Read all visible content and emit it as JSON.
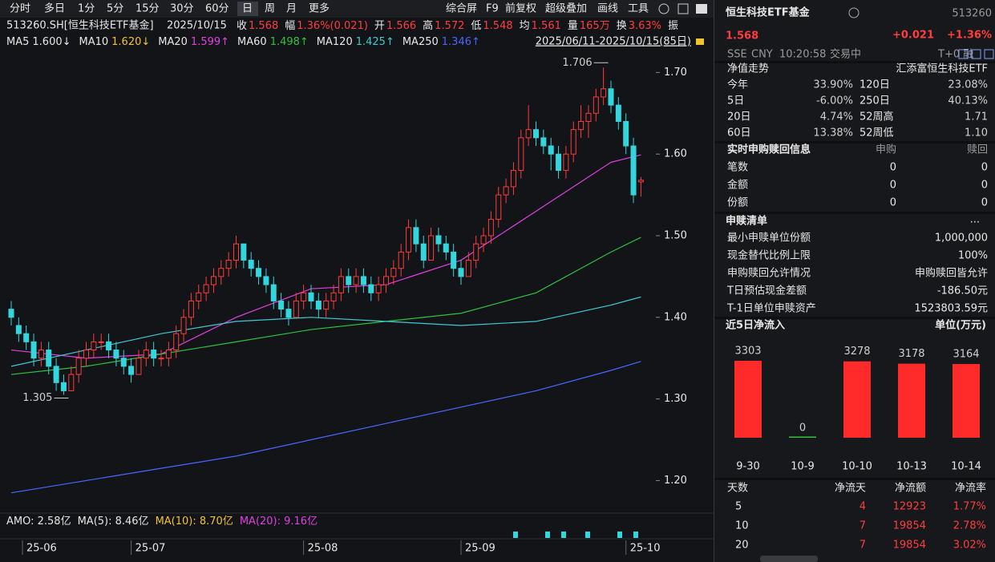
{
  "toolbar": {
    "tabs": [
      "分时",
      "多日",
      "1分",
      "5分",
      "15分",
      "30分",
      "60分",
      "日",
      "周",
      "月",
      "更多"
    ],
    "active": 7,
    "tools": [
      "综合屏",
      "F9",
      "前复权",
      "超级叠加",
      "画线",
      "工具"
    ]
  },
  "quote_bar": {
    "code": "513260.SH[恒生科技ETF基金]",
    "date": "2025/10/15",
    "items": [
      {
        "label": "收",
        "value": "1.568"
      },
      {
        "label": "幅",
        "value": "1.36%(0.021)"
      },
      {
        "label": "开",
        "value": "1.566"
      },
      {
        "label": "高",
        "value": "1.572"
      },
      {
        "label": "低",
        "value": "1.548"
      },
      {
        "label": "均",
        "value": "1.561"
      },
      {
        "label": "量",
        "value": "165万"
      },
      {
        "label": "换",
        "value": "3.63%"
      },
      {
        "label": "振"
      }
    ]
  },
  "period": "2025/06/11-2025/10/15(85日)",
  "chart_data": [
    {
      "type": "candlestick",
      "up_color": "#ff3b3b",
      "down_color": "#33d6dc",
      "ylim": [
        1.168,
        1.722
      ],
      "yticks": [
        {
          "value": 1.2,
          "label": "1.20"
        },
        {
          "value": 1.3,
          "label": "1.30"
        },
        {
          "value": 1.4,
          "label": "1.40"
        },
        {
          "value": 1.5,
          "label": "1.50"
        },
        {
          "value": 1.6,
          "label": "1.60"
        },
        {
          "value": 1.7,
          "label": "1.70"
        }
      ],
      "xticks": [
        {
          "value": 1.5,
          "label": "25-06"
        },
        {
          "value": 16,
          "label": "25-07"
        },
        {
          "value": 39,
          "label": "25-08"
        },
        {
          "value": 60,
          "label": "25-09"
        },
        {
          "value": 82,
          "label": "25-10"
        }
      ],
      "ohlc": [
        [
          1.41,
          1.42,
          1.39,
          1.4
        ],
        [
          1.39,
          1.4,
          1.37,
          1.38
        ],
        [
          1.38,
          1.39,
          1.36,
          1.37
        ],
        [
          1.37,
          1.38,
          1.34,
          1.35
        ],
        [
          1.35,
          1.37,
          1.34,
          1.36
        ],
        [
          1.36,
          1.37,
          1.33,
          1.34
        ],
        [
          1.34,
          1.35,
          1.31,
          1.32
        ],
        [
          1.32,
          1.33,
          1.305,
          1.31
        ],
        [
          1.31,
          1.34,
          1.31,
          1.33
        ],
        [
          1.33,
          1.36,
          1.32,
          1.35
        ],
        [
          1.35,
          1.37,
          1.34,
          1.36
        ],
        [
          1.36,
          1.38,
          1.35,
          1.37
        ],
        [
          1.37,
          1.38,
          1.36,
          1.37
        ],
        [
          1.37,
          1.38,
          1.35,
          1.36
        ],
        [
          1.36,
          1.37,
          1.34,
          1.35
        ],
        [
          1.35,
          1.36,
          1.33,
          1.34
        ],
        [
          1.34,
          1.35,
          1.32,
          1.33
        ],
        [
          1.33,
          1.36,
          1.33,
          1.35
        ],
        [
          1.35,
          1.37,
          1.34,
          1.36
        ],
        [
          1.36,
          1.37,
          1.34,
          1.35
        ],
        [
          1.35,
          1.36,
          1.34,
          1.35
        ],
        [
          1.35,
          1.37,
          1.34,
          1.36
        ],
        [
          1.36,
          1.39,
          1.35,
          1.38
        ],
        [
          1.38,
          1.41,
          1.37,
          1.4
        ],
        [
          1.4,
          1.43,
          1.39,
          1.42
        ],
        [
          1.42,
          1.44,
          1.41,
          1.43
        ],
        [
          1.43,
          1.45,
          1.42,
          1.44
        ],
        [
          1.44,
          1.46,
          1.43,
          1.45
        ],
        [
          1.45,
          1.47,
          1.44,
          1.46
        ],
        [
          1.46,
          1.48,
          1.45,
          1.47
        ],
        [
          1.47,
          1.5,
          1.46,
          1.49
        ],
        [
          1.49,
          1.49,
          1.46,
          1.47
        ],
        [
          1.47,
          1.48,
          1.45,
          1.46
        ],
        [
          1.46,
          1.47,
          1.44,
          1.45
        ],
        [
          1.45,
          1.46,
          1.43,
          1.44
        ],
        [
          1.44,
          1.45,
          1.41,
          1.42
        ],
        [
          1.42,
          1.43,
          1.4,
          1.41
        ],
        [
          1.41,
          1.42,
          1.39,
          1.4
        ],
        [
          1.4,
          1.43,
          1.4,
          1.42
        ],
        [
          1.42,
          1.44,
          1.41,
          1.43
        ],
        [
          1.43,
          1.44,
          1.41,
          1.42
        ],
        [
          1.42,
          1.43,
          1.4,
          1.41
        ],
        [
          1.41,
          1.43,
          1.4,
          1.42
        ],
        [
          1.42,
          1.44,
          1.41,
          1.43
        ],
        [
          1.43,
          1.46,
          1.42,
          1.45
        ],
        [
          1.45,
          1.46,
          1.43,
          1.44
        ],
        [
          1.44,
          1.46,
          1.43,
          1.45
        ],
        [
          1.45,
          1.46,
          1.43,
          1.44
        ],
        [
          1.44,
          1.45,
          1.42,
          1.43
        ],
        [
          1.43,
          1.45,
          1.42,
          1.44
        ],
        [
          1.44,
          1.46,
          1.43,
          1.45
        ],
        [
          1.45,
          1.47,
          1.44,
          1.46
        ],
        [
          1.46,
          1.49,
          1.45,
          1.48
        ],
        [
          1.48,
          1.52,
          1.47,
          1.51
        ],
        [
          1.51,
          1.52,
          1.48,
          1.49
        ],
        [
          1.49,
          1.5,
          1.46,
          1.47
        ],
        [
          1.47,
          1.51,
          1.47,
          1.5
        ],
        [
          1.5,
          1.51,
          1.48,
          1.49
        ],
        [
          1.49,
          1.5,
          1.47,
          1.48
        ],
        [
          1.48,
          1.49,
          1.45,
          1.46
        ],
        [
          1.46,
          1.47,
          1.44,
          1.45
        ],
        [
          1.45,
          1.48,
          1.45,
          1.47
        ],
        [
          1.47,
          1.5,
          1.46,
          1.49
        ],
        [
          1.49,
          1.51,
          1.48,
          1.5
        ],
        [
          1.5,
          1.53,
          1.49,
          1.52
        ],
        [
          1.52,
          1.56,
          1.51,
          1.55
        ],
        [
          1.55,
          1.57,
          1.54,
          1.56
        ],
        [
          1.56,
          1.59,
          1.55,
          1.58
        ],
        [
          1.58,
          1.63,
          1.57,
          1.62
        ],
        [
          1.62,
          1.66,
          1.61,
          1.63
        ],
        [
          1.63,
          1.64,
          1.61,
          1.62
        ],
        [
          1.62,
          1.63,
          1.6,
          1.61
        ],
        [
          1.61,
          1.62,
          1.58,
          1.6
        ],
        [
          1.6,
          1.61,
          1.57,
          1.58
        ],
        [
          1.58,
          1.61,
          1.57,
          1.6
        ],
        [
          1.6,
          1.64,
          1.59,
          1.63
        ],
        [
          1.63,
          1.66,
          1.62,
          1.64
        ],
        [
          1.64,
          1.66,
          1.62,
          1.65
        ],
        [
          1.65,
          1.68,
          1.64,
          1.67
        ],
        [
          1.67,
          1.706,
          1.66,
          1.68
        ],
        [
          1.68,
          1.69,
          1.65,
          1.66
        ],
        [
          1.66,
          1.67,
          1.63,
          1.64
        ],
        [
          1.64,
          1.65,
          1.6,
          1.61
        ],
        [
          1.61,
          1.62,
          1.54,
          1.55
        ],
        [
          1.566,
          1.572,
          1.548,
          1.568
        ]
      ],
      "series": [
        {
          "name": "MA5",
          "label": "1.600↓",
          "color": "#e6e6e6"
        },
        {
          "name": "MA10",
          "label": "1.620↓",
          "color": "#f2c230"
        },
        {
          "name": "MA20",
          "label": "1.599↑",
          "color": "#e040e0",
          "x": [
            0,
            10,
            20,
            30,
            40,
            50,
            60,
            70,
            80,
            84
          ],
          "values": [
            1.36,
            1.35,
            1.355,
            1.4,
            1.435,
            1.44,
            1.47,
            1.53,
            1.59,
            1.599
          ]
        },
        {
          "name": "MA60",
          "label": "1.498↑",
          "color": "#30c040",
          "x": [
            0,
            10,
            20,
            30,
            40,
            50,
            60,
            70,
            80,
            84
          ],
          "values": [
            1.33,
            1.34,
            1.355,
            1.37,
            1.385,
            1.395,
            1.405,
            1.43,
            1.48,
            1.498
          ]
        },
        {
          "name": "MA120",
          "label": "1.425↑",
          "color": "#40c8d0",
          "x": [
            0,
            10,
            20,
            30,
            40,
            50,
            60,
            70,
            80,
            84
          ],
          "values": [
            1.34,
            1.36,
            1.38,
            1.395,
            1.4,
            1.395,
            1.39,
            1.395,
            1.415,
            1.425
          ]
        },
        {
          "name": "MA250",
          "label": "1.346↑",
          "color": "#4a66ff",
          "x": [
            0,
            10,
            20,
            30,
            40,
            50,
            60,
            70,
            80,
            84
          ],
          "values": [
            1.185,
            1.2,
            1.215,
            1.23,
            1.25,
            1.27,
            1.29,
            1.31,
            1.335,
            1.346
          ]
        }
      ],
      "annotations": [
        {
          "text": "1.706",
          "x": 79,
          "y": 1.706,
          "color": "#ff3d3d"
        },
        {
          "text": "1.305",
          "x": 7,
          "y": 1.305,
          "color": "#30c040"
        }
      ]
    },
    {
      "type": "bar",
      "title": "近5日净流入",
      "unit": "单位(万元)",
      "categories": [
        "9-30",
        "10-9",
        "10-10",
        "10-13",
        "10-14"
      ],
      "values": [
        3303,
        0,
        3278,
        3178,
        3164
      ],
      "colors": [
        "#ff2a2a",
        "#30c040",
        "#ff2a2a",
        "#ff2a2a",
        "#ff2a2a"
      ],
      "ylim": [
        0,
        3303
      ]
    }
  ],
  "amo": [
    {
      "text": "AMO: 2.58亿",
      "color": "#e6e6e6"
    },
    {
      "text": "MA(5): 8.46亿",
      "color": "#e6e6e6"
    },
    {
      "text": "MA(10): 8.70亿",
      "color": "#f2c230"
    },
    {
      "text": "MA(20): 9.16亿",
      "color": "#e040e0"
    }
  ],
  "panel": {
    "name": "恒生科技ETF基金",
    "code": "513260",
    "price": "1.568",
    "change": "+0.021",
    "change_pct": "+1.36%",
    "meta": [
      "SSE",
      "CNY",
      "10:20:58",
      "交易中"
    ],
    "t0": "T+0 融",
    "nav": {
      "title": "净值走势",
      "fund": "汇添富恒生科技ETF",
      "rows": [
        {
          "l1": "今年",
          "v1": "33.90%",
          "c1": "#ff3d3d",
          "l2": "120日",
          "v2": "23.08%",
          "c2": "#ff3d3d"
        },
        {
          "l1": "5日",
          "v1": "-6.00%",
          "c1": "#30c040",
          "l2": "250日",
          "v2": "40.13%",
          "c2": "#ff3d3d"
        },
        {
          "l1": "20日",
          "v1": "4.74%",
          "c1": "#ff3d3d",
          "l2": "52周高",
          "v2": "1.71",
          "c2": "#e8e8e8"
        },
        {
          "l1": "60日",
          "v1": "13.38%",
          "c1": "#ff3d3d",
          "l2": "52周低",
          "v2": "1.10",
          "c2": "#e8e8e8"
        }
      ]
    },
    "redeem": {
      "title": "实时申购赎回信息",
      "columns": [
        "申购",
        "赎回"
      ],
      "rows": [
        [
          "笔数",
          "0",
          "0"
        ],
        [
          "金额",
          "0",
          "0"
        ],
        [
          "份额",
          "0",
          "0"
        ]
      ]
    },
    "list": {
      "title": "申赎清单",
      "more": "...",
      "rows": [
        [
          "最小申赎单位份额",
          "1,000,000"
        ],
        [
          "现金替代比例上限",
          "100%"
        ],
        [
          "申购赎回允许情况",
          "申购赎回皆允许"
        ],
        [
          "T日预估现金差额",
          "-186.50元"
        ],
        [
          "T-1日单位申赎资产",
          "1523803.59元"
        ]
      ]
    },
    "flow_table": {
      "columns": [
        "天数",
        "净流天",
        "净流额",
        "净流率"
      ],
      "rows": [
        [
          "5",
          "4",
          "12923",
          "1.77%"
        ],
        [
          "10",
          "7",
          "19854",
          "2.78%"
        ],
        [
          "20",
          "7",
          "19854",
          "3.02%"
        ]
      ]
    }
  }
}
